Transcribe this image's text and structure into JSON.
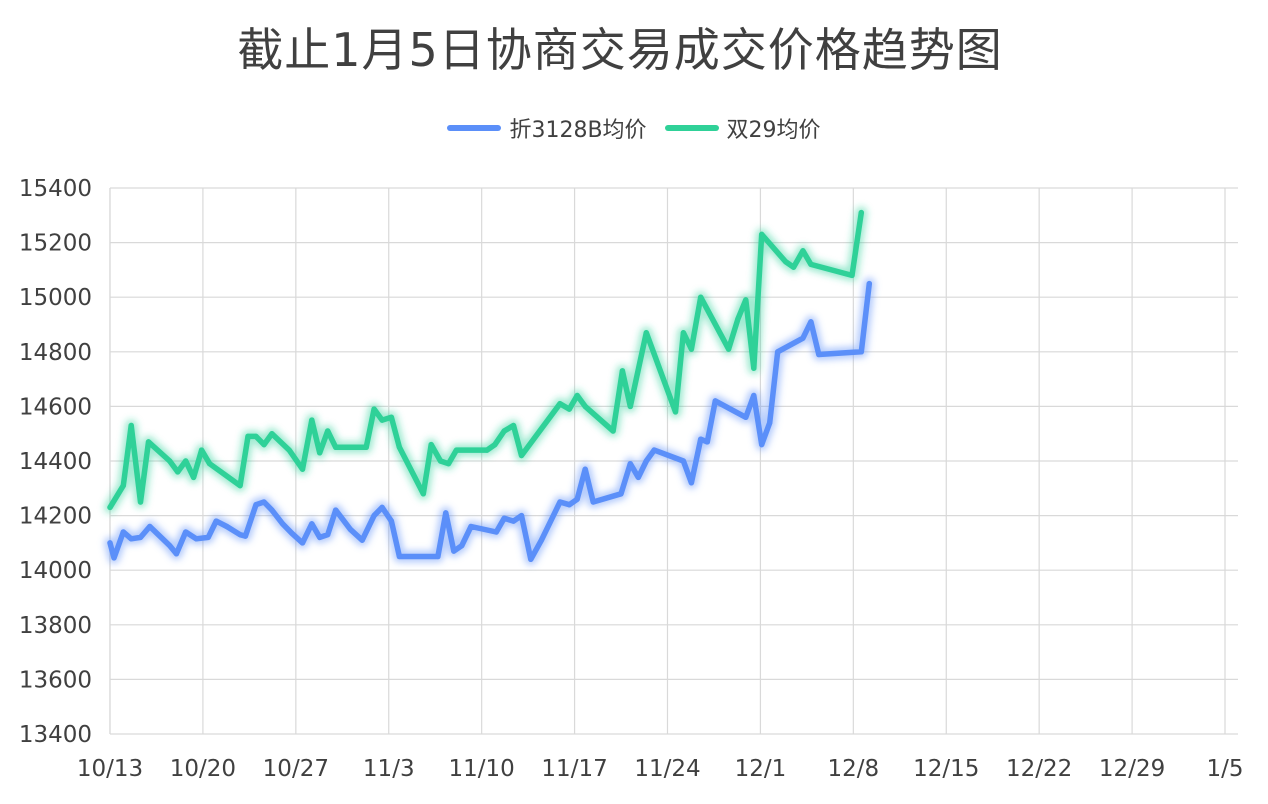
{
  "chart_data": {
    "type": "line",
    "title": "截止1月5日协商交易成交价格趋势图",
    "xlabel": "",
    "ylabel": "",
    "ylim": [
      13400,
      15400
    ],
    "yticks": [
      13400,
      13600,
      13800,
      14000,
      14200,
      14400,
      14600,
      14800,
      15000,
      15200,
      15400
    ],
    "xticks": [
      {
        "label": "10/13",
        "day": 0
      },
      {
        "label": "10/20",
        "day": 7
      },
      {
        "label": "10/27",
        "day": 14
      },
      {
        "label": "11/3",
        "day": 21
      },
      {
        "label": "11/10",
        "day": 28
      },
      {
        "label": "11/17",
        "day": 35
      },
      {
        "label": "11/24",
        "day": 42
      },
      {
        "label": "12/1",
        "day": 49
      },
      {
        "label": "12/8",
        "day": 56
      },
      {
        "label": "12/15",
        "day": 63
      },
      {
        "label": "12/22",
        "day": 70
      },
      {
        "label": "12/29",
        "day": 77
      },
      {
        "label": "1/5",
        "day": 84
      }
    ],
    "grid": true,
    "legend_position": "top",
    "series": [
      {
        "name": "折3128B均价",
        "color": "#5b8ff9",
        "points": [
          [
            0,
            14100
          ],
          [
            0.3,
            14045
          ],
          [
            1,
            14140
          ],
          [
            1.6,
            14115
          ],
          [
            2.3,
            14120
          ],
          [
            3,
            14160
          ],
          [
            4.5,
            14090
          ],
          [
            5,
            14060
          ],
          [
            5.7,
            14140
          ],
          [
            6.5,
            14115
          ],
          [
            7.4,
            14120
          ],
          [
            8,
            14180
          ],
          [
            8.8,
            14160
          ],
          [
            9.8,
            14130
          ],
          [
            10.2,
            14125
          ],
          [
            11,
            14240
          ],
          [
            11.6,
            14250
          ],
          [
            12.2,
            14220
          ],
          [
            13,
            14170
          ],
          [
            13.7,
            14135
          ],
          [
            14.5,
            14100
          ],
          [
            15.2,
            14170
          ],
          [
            15.8,
            14120
          ],
          [
            16.4,
            14130
          ],
          [
            17,
            14220
          ],
          [
            18.1,
            14150
          ],
          [
            19,
            14110
          ],
          [
            19.9,
            14200
          ],
          [
            20.5,
            14230
          ],
          [
            21.2,
            14180
          ],
          [
            21.8,
            14050
          ],
          [
            24.7,
            14050
          ],
          [
            25.3,
            14210
          ],
          [
            25.9,
            14070
          ],
          [
            26.5,
            14090
          ],
          [
            27.2,
            14160
          ],
          [
            29.1,
            14140
          ],
          [
            29.7,
            14190
          ],
          [
            30.4,
            14180
          ],
          [
            31,
            14200
          ],
          [
            31.7,
            14040
          ],
          [
            32.5,
            14110
          ],
          [
            33.9,
            14250
          ],
          [
            34.6,
            14240
          ],
          [
            35.2,
            14260
          ],
          [
            35.8,
            14370
          ],
          [
            36.4,
            14250
          ],
          [
            38.5,
            14280
          ],
          [
            39.2,
            14390
          ],
          [
            39.8,
            14340
          ],
          [
            40.4,
            14400
          ],
          [
            41,
            14440
          ],
          [
            43.2,
            14400
          ],
          [
            43.8,
            14320
          ],
          [
            44.5,
            14480
          ],
          [
            45,
            14470
          ],
          [
            45.6,
            14620
          ],
          [
            47.9,
            14560
          ],
          [
            48.5,
            14640
          ],
          [
            49.1,
            14460
          ],
          [
            49.7,
            14540
          ],
          [
            50.3,
            14800
          ],
          [
            52.2,
            14850
          ],
          [
            52.8,
            14910
          ],
          [
            53.4,
            14790
          ],
          [
            56.6,
            14800
          ],
          [
            57.2,
            15050
          ]
        ]
      },
      {
        "name": "双29均价",
        "color": "#2fd198",
        "points": [
          [
            0,
            14230
          ],
          [
            1,
            14310
          ],
          [
            1.6,
            14530
          ],
          [
            2.3,
            14250
          ],
          [
            2.9,
            14470
          ],
          [
            4.5,
            14400
          ],
          [
            5.1,
            14360
          ],
          [
            5.7,
            14400
          ],
          [
            6.3,
            14340
          ],
          [
            6.9,
            14440
          ],
          [
            7.5,
            14390
          ],
          [
            9.8,
            14310
          ],
          [
            10.4,
            14490
          ],
          [
            11,
            14490
          ],
          [
            11.6,
            14460
          ],
          [
            12.2,
            14500
          ],
          [
            13.5,
            14440
          ],
          [
            14.5,
            14370
          ],
          [
            15.2,
            14550
          ],
          [
            15.8,
            14430
          ],
          [
            16.4,
            14510
          ],
          [
            17,
            14450
          ],
          [
            19.3,
            14450
          ],
          [
            19.9,
            14590
          ],
          [
            20.5,
            14550
          ],
          [
            21.2,
            14560
          ],
          [
            21.8,
            14450
          ],
          [
            23.6,
            14280
          ],
          [
            24.2,
            14460
          ],
          [
            24.9,
            14400
          ],
          [
            25.5,
            14390
          ],
          [
            26.1,
            14440
          ],
          [
            28.4,
            14440
          ],
          [
            29,
            14460
          ],
          [
            29.7,
            14510
          ],
          [
            30.4,
            14530
          ],
          [
            31,
            14420
          ],
          [
            33.9,
            14610
          ],
          [
            34.6,
            14590
          ],
          [
            35.2,
            14640
          ],
          [
            35.8,
            14600
          ],
          [
            37.9,
            14510
          ],
          [
            38.6,
            14730
          ],
          [
            39.2,
            14600
          ],
          [
            40.4,
            14870
          ],
          [
            42.6,
            14580
          ],
          [
            43.2,
            14870
          ],
          [
            43.8,
            14810
          ],
          [
            44.5,
            15000
          ],
          [
            46.6,
            14810
          ],
          [
            47.3,
            14920
          ],
          [
            47.9,
            14990
          ],
          [
            48.5,
            14740
          ],
          [
            49.1,
            15230
          ],
          [
            50.9,
            15130
          ],
          [
            51.5,
            15110
          ],
          [
            52.2,
            15170
          ],
          [
            52.8,
            15120
          ],
          [
            55.9,
            15080
          ],
          [
            56.6,
            15310
          ]
        ]
      }
    ]
  }
}
